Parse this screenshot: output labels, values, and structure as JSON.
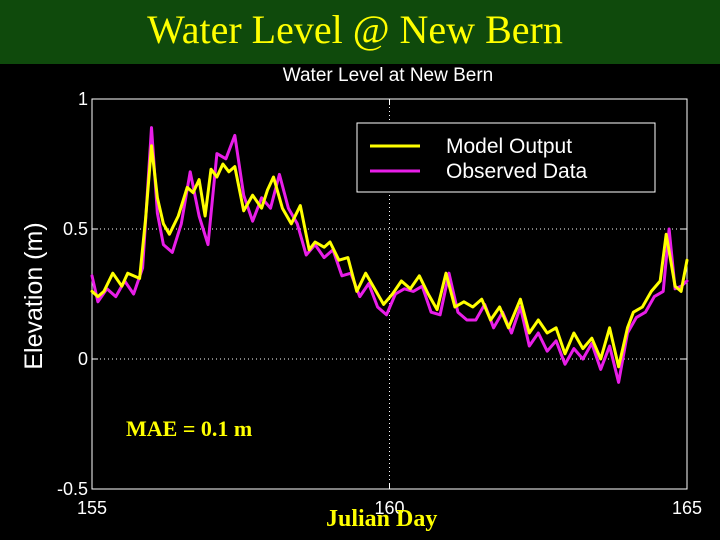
{
  "slide": {
    "title": "Water Level @ New Bern",
    "mae": "MAE = 0.1 m",
    "xaxis_caption": "Julian Day",
    "banner_color": "#0f4a0c",
    "text_color": "#ffff00"
  },
  "chart_data": {
    "type": "line",
    "title": "Water Level at New Bern",
    "xlabel": "",
    "ylabel": "Elevation (m)",
    "xlim": [
      155,
      165
    ],
    "ylim": [
      -0.5,
      1
    ],
    "xticks": [
      "155",
      "160",
      "165"
    ],
    "yticks": [
      "1",
      "0.5",
      "0",
      "-0.5"
    ],
    "grid": true,
    "legend_position": "top-right",
    "series": [
      {
        "name": "Model Output",
        "color": "#ffff00",
        "x": [
          155.0,
          155.1,
          155.2,
          155.35,
          155.5,
          155.6,
          155.8,
          155.9,
          156.0,
          156.1,
          156.2,
          156.3,
          156.45,
          156.6,
          156.7,
          156.8,
          156.9,
          157.0,
          157.1,
          157.2,
          157.3,
          157.4,
          157.55,
          157.7,
          157.85,
          157.95,
          158.05,
          158.2,
          158.35,
          158.5,
          158.65,
          158.75,
          158.9,
          159.0,
          159.15,
          159.3,
          159.45,
          159.6,
          159.75,
          159.9,
          160.05,
          160.2,
          160.35,
          160.5,
          160.65,
          160.8,
          160.95,
          161.1,
          161.25,
          161.4,
          161.55,
          161.7,
          161.85,
          162.0,
          162.2,
          162.35,
          162.5,
          162.65,
          162.8,
          162.95,
          163.1,
          163.25,
          163.4,
          163.55,
          163.7,
          163.85,
          164.0,
          164.1,
          164.25,
          164.4,
          164.55,
          164.65,
          164.8,
          164.9,
          165.0
        ],
        "values": [
          0.26,
          0.24,
          0.26,
          0.33,
          0.28,
          0.33,
          0.31,
          0.54,
          0.82,
          0.62,
          0.52,
          0.48,
          0.55,
          0.66,
          0.64,
          0.69,
          0.55,
          0.73,
          0.7,
          0.75,
          0.72,
          0.74,
          0.57,
          0.63,
          0.58,
          0.65,
          0.7,
          0.58,
          0.52,
          0.59,
          0.42,
          0.45,
          0.43,
          0.45,
          0.38,
          0.39,
          0.26,
          0.33,
          0.27,
          0.21,
          0.25,
          0.3,
          0.27,
          0.32,
          0.25,
          0.19,
          0.33,
          0.2,
          0.22,
          0.2,
          0.23,
          0.15,
          0.2,
          0.12,
          0.23,
          0.1,
          0.15,
          0.1,
          0.12,
          0.02,
          0.1,
          0.04,
          0.08,
          0.0,
          0.12,
          -0.03,
          0.12,
          0.18,
          0.2,
          0.26,
          0.3,
          0.48,
          0.28,
          0.26,
          0.38
        ]
      },
      {
        "name": "Observed Data",
        "color": "#e81ee8",
        "x": [
          155.0,
          155.1,
          155.25,
          155.4,
          155.55,
          155.7,
          155.85,
          156.0,
          156.1,
          156.2,
          156.35,
          156.5,
          156.65,
          156.8,
          156.95,
          157.1,
          157.25,
          157.4,
          157.55,
          157.7,
          157.85,
          158.0,
          158.15,
          158.3,
          158.45,
          158.6,
          158.75,
          158.9,
          159.05,
          159.2,
          159.35,
          159.5,
          159.65,
          159.8,
          159.95,
          160.1,
          160.25,
          160.4,
          160.55,
          160.7,
          160.85,
          161.0,
          161.15,
          161.3,
          161.45,
          161.6,
          161.75,
          161.9,
          162.05,
          162.2,
          162.35,
          162.5,
          162.65,
          162.8,
          162.95,
          163.1,
          163.25,
          163.4,
          163.55,
          163.7,
          163.85,
          164.0,
          164.15,
          164.3,
          164.45,
          164.6,
          164.7,
          164.8,
          164.9,
          165.0
        ],
        "values": [
          0.32,
          0.22,
          0.27,
          0.24,
          0.3,
          0.25,
          0.35,
          0.89,
          0.56,
          0.44,
          0.41,
          0.52,
          0.72,
          0.55,
          0.44,
          0.79,
          0.77,
          0.86,
          0.63,
          0.53,
          0.62,
          0.58,
          0.71,
          0.58,
          0.52,
          0.4,
          0.44,
          0.39,
          0.42,
          0.32,
          0.33,
          0.24,
          0.29,
          0.2,
          0.17,
          0.25,
          0.27,
          0.26,
          0.28,
          0.18,
          0.17,
          0.33,
          0.18,
          0.15,
          0.15,
          0.21,
          0.12,
          0.18,
          0.1,
          0.2,
          0.05,
          0.1,
          0.03,
          0.07,
          -0.02,
          0.04,
          0.0,
          0.06,
          -0.04,
          0.05,
          -0.09,
          0.1,
          0.16,
          0.18,
          0.24,
          0.26,
          0.5,
          0.27,
          0.28,
          0.3
        ]
      }
    ]
  }
}
